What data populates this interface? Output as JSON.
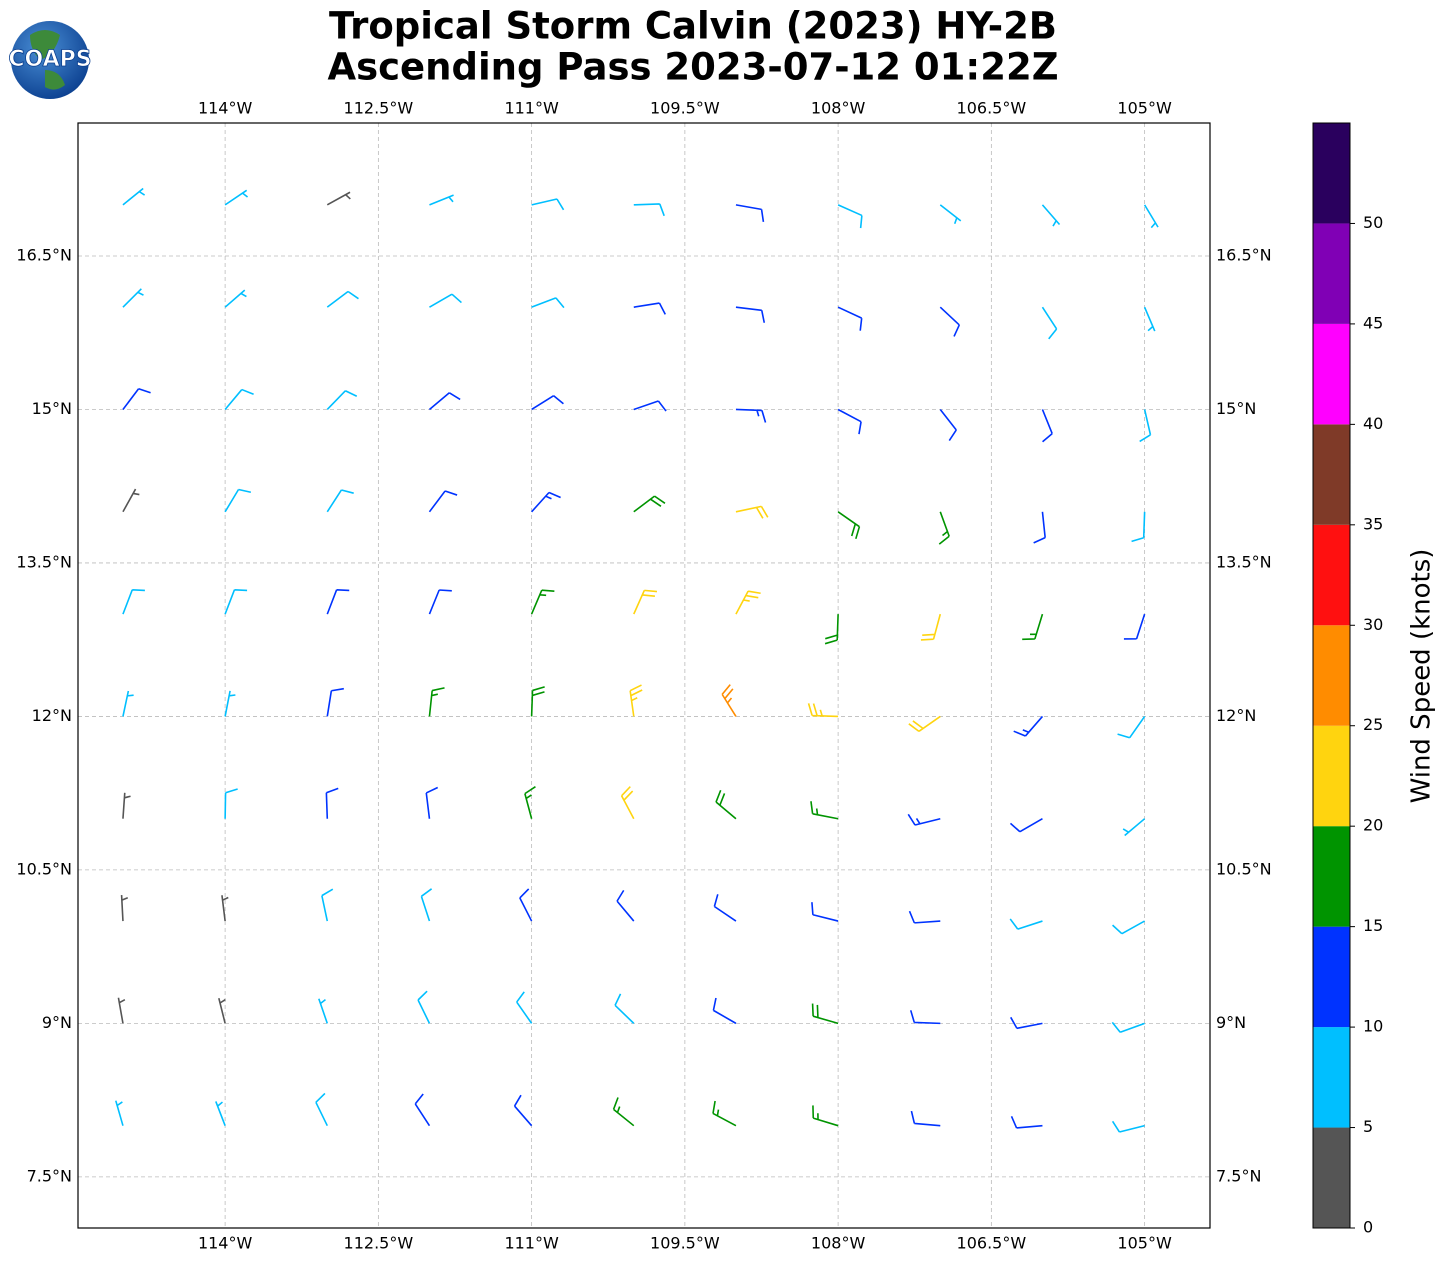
{
  "logo": "COAPS",
  "chart_data": {
    "type": "wind-barbs",
    "title": [
      "Tropical Storm Calvin (2023) HY-2B",
      "Ascending Pass 2023-07-12 01:22Z"
    ],
    "xlim": [
      -115.44,
      -104.36
    ],
    "ylim": [
      7.0,
      17.8
    ],
    "xticks": [
      {
        "value": -114,
        "label": "114°W"
      },
      {
        "value": -112.5,
        "label": "112.5°W"
      },
      {
        "value": -111,
        "label": "111°W"
      },
      {
        "value": -109.5,
        "label": "109.5°W"
      },
      {
        "value": -108,
        "label": "108°W"
      },
      {
        "value": -106.5,
        "label": "106.5°W"
      },
      {
        "value": -105,
        "label": "105°W"
      }
    ],
    "yticks": [
      {
        "value": 7.5,
        "label": "7.5°N"
      },
      {
        "value": 9,
        "label": "9°N"
      },
      {
        "value": 10.5,
        "label": "10.5°N"
      },
      {
        "value": 12,
        "label": "12°N"
      },
      {
        "value": 13.5,
        "label": "13.5°N"
      },
      {
        "value": 15,
        "label": "15°N"
      },
      {
        "value": 16.5,
        "label": "16.5°N"
      }
    ],
    "grid": true,
    "lons": [
      -115,
      -114,
      -113,
      -112,
      -111,
      -110,
      -109,
      -108,
      -107,
      -106,
      -105
    ],
    "lats": [
      17,
      16,
      15,
      14,
      13,
      12,
      11,
      10,
      9,
      8
    ],
    "speed": [
      [
        7,
        7,
        3,
        7,
        8,
        8,
        10,
        8,
        7,
        7,
        7
      ],
      [
        7,
        7,
        8,
        8,
        8,
        10,
        12,
        12,
        10,
        8,
        7
      ],
      [
        10,
        8,
        8,
        10,
        12,
        12,
        13,
        12,
        12,
        10,
        8
      ],
      [
        3,
        8,
        8,
        12,
        14,
        18,
        22,
        18,
        17,
        12,
        8
      ],
      [
        8,
        8,
        10,
        12,
        17,
        22,
        24,
        18,
        22,
        15,
        10
      ],
      [
        7,
        7,
        12,
        15,
        18,
        24,
        27,
        23,
        21,
        13,
        8
      ],
      [
        3,
        8,
        10,
        12,
        17,
        22,
        18,
        17,
        13,
        10,
        7
      ],
      [
        3,
        3,
        8,
        8,
        12,
        12,
        12,
        12,
        10,
        8,
        8
      ],
      [
        3,
        3,
        7,
        8,
        8,
        8,
        10,
        18,
        12,
        10,
        8
      ],
      [
        7,
        7,
        8,
        10,
        12,
        15,
        17,
        17,
        12,
        10,
        8
      ]
    ],
    "direction": [
      [
        51,
        56,
        61,
        68,
        77,
        88,
        100,
        114,
        128,
        139,
        149
      ],
      [
        45,
        49,
        53,
        60,
        69,
        81,
        97,
        115,
        133,
        147,
        157
      ],
      [
        37,
        40,
        44,
        50,
        58,
        71,
        92,
        118,
        142,
        158,
        167
      ],
      [
        29,
        31,
        33,
        37,
        42,
        53,
        78,
        125,
        160,
        174,
        182
      ],
      [
        21,
        21,
        21,
        22,
        23,
        24,
        28,
        182,
        195,
        197,
        198
      ],
      [
        12,
        11,
        9,
        6,
        2,
        352,
        328,
        272,
        235,
        221,
        215
      ],
      [
        4,
        1,
        358,
        353,
        345,
        332,
        310,
        281,
        256,
        240,
        230
      ],
      [
        357,
        353,
        348,
        342,
        333,
        320,
        304,
        284,
        266,
        252,
        241
      ],
      [
        350,
        346,
        341,
        334,
        325,
        314,
        300,
        286,
        272,
        259,
        250
      ],
      [
        344,
        339,
        334,
        327,
        319,
        309,
        298,
        287,
        275,
        265,
        256
      ]
    ],
    "colorbar": {
      "label": "Wind Speed (knots)",
      "levels": [
        0,
        5,
        10,
        15,
        20,
        25,
        30,
        35,
        40,
        45,
        50,
        55
      ],
      "colors": [
        "#555555",
        "#00bfff",
        "#0033ff",
        "#009400",
        "#ffd40f",
        "#ff8c00",
        "#ff1010",
        "#7f3a28",
        "#ff00ff",
        "#8000b5",
        "#2a005e"
      ],
      "ticks": [
        0,
        5,
        10,
        15,
        20,
        25,
        30,
        35,
        40,
        45,
        50
      ]
    }
  }
}
